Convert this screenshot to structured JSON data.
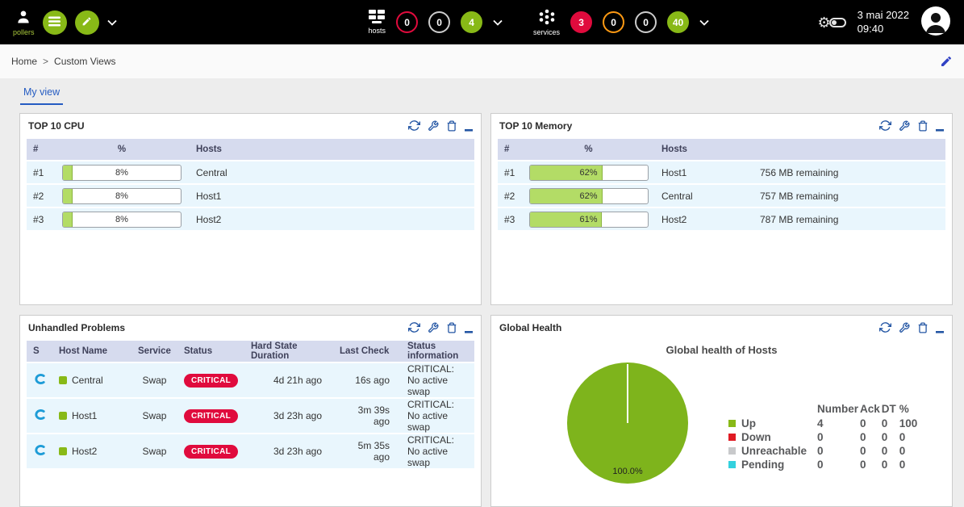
{
  "colors": {
    "accent_green": "#88b917",
    "badge_red": "#e00b3d",
    "badge_orange": "#ff9a13",
    "badge_gray": "#cccccc",
    "critical_badge": "#e00b3d",
    "panel_icon_blue": "#2456a4",
    "tab_blue": "#255cc2",
    "table_header_bg": "#d6dbee",
    "table_row_bg": "#e9f6fd"
  },
  "header": {
    "pollers_label": "pollers",
    "hosts": {
      "label": "hosts",
      "badges": [
        {
          "value": "0",
          "bg": "#000000",
          "border": "#e00b3d"
        },
        {
          "value": "0",
          "bg": "#000000",
          "border": "#cccccc"
        },
        {
          "value": "4",
          "bg": "#88b917",
          "border": "#88b917"
        }
      ]
    },
    "services": {
      "label": "services",
      "badges": [
        {
          "value": "3",
          "bg": "#e00b3d",
          "border": "#e00b3d"
        },
        {
          "value": "0",
          "bg": "#000000",
          "border": "#ff9a13"
        },
        {
          "value": "0",
          "bg": "#000000",
          "border": "#cccccc"
        },
        {
          "value": "40",
          "bg": "#88b917",
          "border": "#88b917"
        }
      ]
    },
    "clock": {
      "date": "3 mai 2022",
      "time": "09:40"
    }
  },
  "breadcrumb": {
    "home": "Home",
    "separator": ">",
    "current": "Custom Views"
  },
  "tab": {
    "label": "My view"
  },
  "panels": {
    "cpu": {
      "title": "TOP 10 CPU",
      "columns": [
        "#",
        "%",
        "Hosts"
      ],
      "rows": [
        {
          "rank": "#1",
          "percent": 8,
          "percent_label": "8%",
          "host": "Central"
        },
        {
          "rank": "#2",
          "percent": 8,
          "percent_label": "8%",
          "host": "Host1"
        },
        {
          "rank": "#3",
          "percent": 8,
          "percent_label": "8%",
          "host": "Host2"
        }
      ]
    },
    "memory": {
      "title": "TOP 10 Memory",
      "columns": [
        "#",
        "%",
        "Hosts"
      ],
      "rows": [
        {
          "rank": "#1",
          "percent": 62,
          "percent_label": "62%",
          "host": "Host1",
          "remaining": "756 MB remaining"
        },
        {
          "rank": "#2",
          "percent": 62,
          "percent_label": "62%",
          "host": "Central",
          "remaining": "757 MB remaining"
        },
        {
          "rank": "#3",
          "percent": 61,
          "percent_label": "61%",
          "host": "Host2",
          "remaining": "787 MB remaining"
        }
      ]
    },
    "problems": {
      "title": "Unhandled Problems",
      "columns": [
        "S",
        "Host Name",
        "Service",
        "Status",
        "Hard State Duration",
        "Last Check",
        "Status information"
      ],
      "rows": [
        {
          "host": "Central",
          "service": "Swap",
          "status": "CRITICAL",
          "duration": "4d 21h ago",
          "last_check": "16s ago",
          "info": "CRITICAL: No active swap"
        },
        {
          "host": "Host1",
          "service": "Swap",
          "status": "CRITICAL",
          "duration": "3d 23h ago",
          "last_check": "3m 39s ago",
          "info": "CRITICAL: No active swap"
        },
        {
          "host": "Host2",
          "service": "Swap",
          "status": "CRITICAL",
          "duration": "3d 23h ago",
          "last_check": "5m 35s ago",
          "info": "CRITICAL: No active swap"
        }
      ]
    },
    "health": {
      "title": "Global Health",
      "chart_data": {
        "type": "pie",
        "title": "Global health of Hosts",
        "labels": [
          "Up",
          "Down",
          "Unreachable",
          "Pending"
        ],
        "values": [
          100,
          0,
          0,
          0
        ],
        "colors": [
          "#7eb41c",
          "#e01b24",
          "#c8c9cb",
          "#33d1de"
        ],
        "unit": "%",
        "center_label": "100.0%",
        "legend_position": "right"
      },
      "legend_columns": [
        "Number",
        "Ack",
        "DT",
        "%"
      ],
      "legend": [
        {
          "label": "Up",
          "color": "#88b917",
          "number": "4",
          "ack": "0",
          "dt": "0",
          "pct": "100"
        },
        {
          "label": "Down",
          "color": "#e01b24",
          "number": "0",
          "ack": "0",
          "dt": "0",
          "pct": "0"
        },
        {
          "label": "Unreachable",
          "color": "#c8c9cb",
          "number": "0",
          "ack": "0",
          "dt": "0",
          "pct": "0"
        },
        {
          "label": "Pending",
          "color": "#33d1de",
          "number": "0",
          "ack": "0",
          "dt": "0",
          "pct": "0"
        }
      ]
    }
  }
}
